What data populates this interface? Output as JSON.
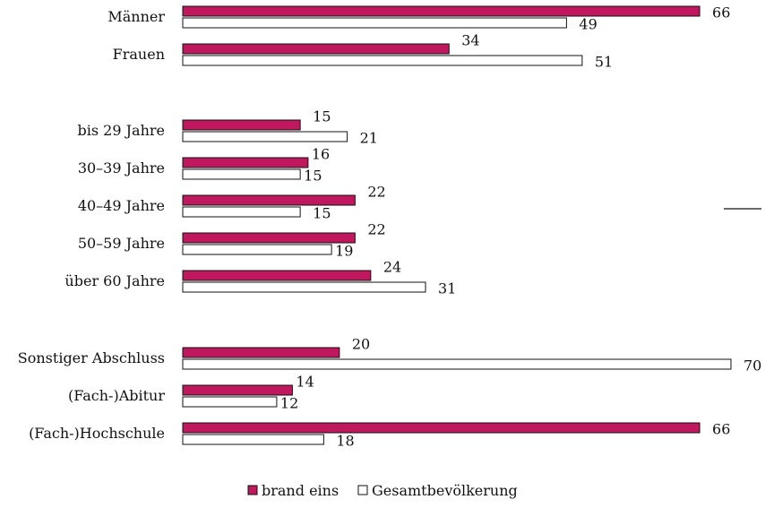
{
  "chart_data": {
    "type": "bar",
    "orientation": "horizontal",
    "groups": [
      [
        "Männer",
        "Frauen"
      ],
      [
        "bis 29 Jahre",
        "30–39 Jahre",
        "40–49 Jahre",
        "50–59 Jahre",
        "über 60 Jahre"
      ],
      [
        "Sonstiger Abschluss",
        "(Fach-)Abitur",
        "(Fach-)Hochschule"
      ]
    ],
    "categories": [
      "Männer",
      "Frauen",
      "bis 29 Jahre",
      "30–39 Jahre",
      "40–49 Jahre",
      "50–59 Jahre",
      "über 60 Jahre",
      "Sonstiger Abschluss",
      "(Fach-)Abitur",
      "(Fach-)Hochschule"
    ],
    "series": [
      {
        "name": "brand eins",
        "color": "#c0185f",
        "values": [
          66,
          34,
          15,
          16,
          22,
          22,
          24,
          20,
          14,
          66
        ]
      },
      {
        "name": "Gesamtbevölkerung",
        "color": "#ffffff",
        "values": [
          49,
          51,
          21,
          15,
          15,
          19,
          31,
          70,
          12,
          18
        ]
      }
    ],
    "xlim": [
      0,
      70
    ],
    "grid": false,
    "legend_position": "bottom"
  }
}
